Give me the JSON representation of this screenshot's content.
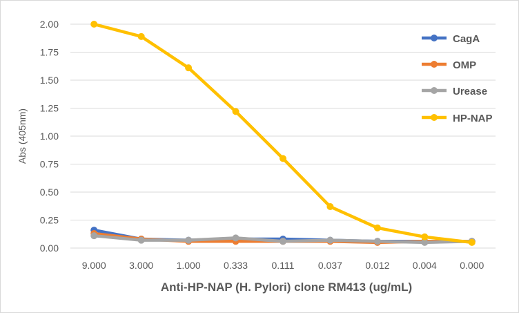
{
  "chart_data": {
    "type": "line",
    "title": "",
    "xlabel": "Anti-HP-NAP (H. Pylori) clone RM413 (ug/mL)",
    "ylabel": "Abs (405nm)",
    "categories": [
      "9.000",
      "3.000",
      "1.000",
      "0.333",
      "0.111",
      "0.037",
      "0.012",
      "0.004",
      "0.000"
    ],
    "ylim": [
      0,
      2.0
    ],
    "yticks": [
      "0.00",
      "0.25",
      "0.50",
      "0.75",
      "1.00",
      "1.25",
      "1.50",
      "1.75",
      "2.00"
    ],
    "grid": true,
    "legend_position": "right",
    "series": [
      {
        "name": "CagA",
        "color": "#4472C4",
        "values": [
          0.16,
          0.08,
          0.07,
          0.08,
          0.08,
          0.07,
          0.06,
          0.06,
          0.06
        ]
      },
      {
        "name": "OMP",
        "color": "#ED7D31",
        "values": [
          0.13,
          0.08,
          0.06,
          0.06,
          0.06,
          0.06,
          0.05,
          0.06,
          0.06
        ]
      },
      {
        "name": "Urease",
        "color": "#A5A5A5",
        "values": [
          0.11,
          0.07,
          0.07,
          0.09,
          0.06,
          0.07,
          0.06,
          0.05,
          0.06
        ]
      },
      {
        "name": "HP-NAP",
        "color": "#FFC000",
        "values": [
          2.0,
          1.89,
          1.61,
          1.22,
          0.8,
          0.37,
          0.18,
          0.1,
          0.05
        ]
      }
    ]
  }
}
